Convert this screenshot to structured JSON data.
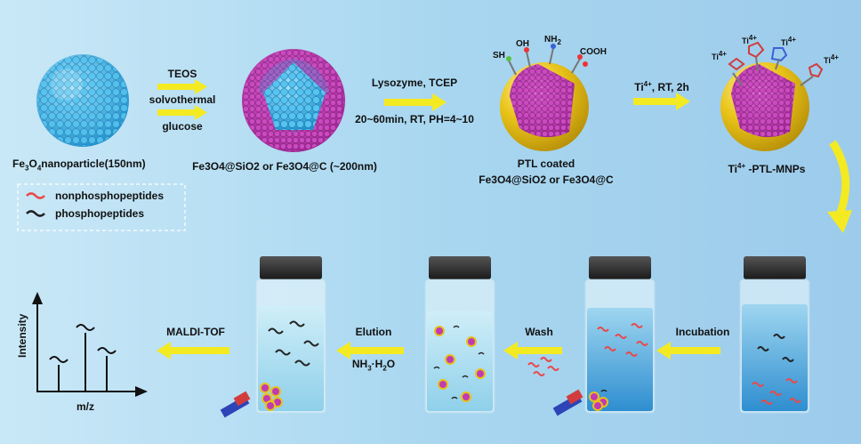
{
  "step1": {
    "above": "TEOS",
    "mid": "solvothermal",
    "below": "glucose"
  },
  "step2": {
    "above": "Lysozyme, TCEP",
    "below": "20~60min, RT, PH=4~10"
  },
  "step3": {
    "above_sup": "4+",
    "above_rest": ", RT, 2h",
    "ti": "Ti"
  },
  "nanoparticle_label": {
    "a": "Fe",
    "a_sub": "3",
    "b": "O",
    "b_sub": "4",
    "c": "nanoparticle(150nm)"
  },
  "coated_label": {
    "line": "Fe3O4@SiO2 or Fe3O4@C (~200nm)"
  },
  "ptl_label": {
    "line1": "PTL coated",
    "line2": "Fe3O4@SiO2 or Fe3O4@C"
  },
  "ti_label": {
    "ti": "Ti",
    "sup": "4+",
    "rest": " -PTL-MNPs"
  },
  "groups": {
    "sh": "SH",
    "oh": "OH",
    "nh": "NH",
    "nh_sub": "2",
    "cooh": "COOH",
    "ti": "Ti",
    "ti_sup": "4+"
  },
  "legend": {
    "nonphospho": "nonphosphopeptides",
    "phospho": "phosphopeptides"
  },
  "process": {
    "incubation": "Incubation",
    "wash": "Wash",
    "elution": "Elution",
    "nh3": "NH",
    "nh3_sub": "3",
    "h2o": "·H",
    "h2o_sub": "2",
    "h2o_end": "O",
    "maldi": "MALDI-TOF"
  },
  "spectrum": {
    "ylabel": "Intensity",
    "xlabel": "m/z"
  },
  "colors": {
    "arrow": "#f4ea22",
    "core": "#3fb0e0",
    "shell": "#c03ab4",
    "gold": "#e8c11a",
    "phospho": "#222222",
    "nonphospho": "#e84a4a"
  }
}
